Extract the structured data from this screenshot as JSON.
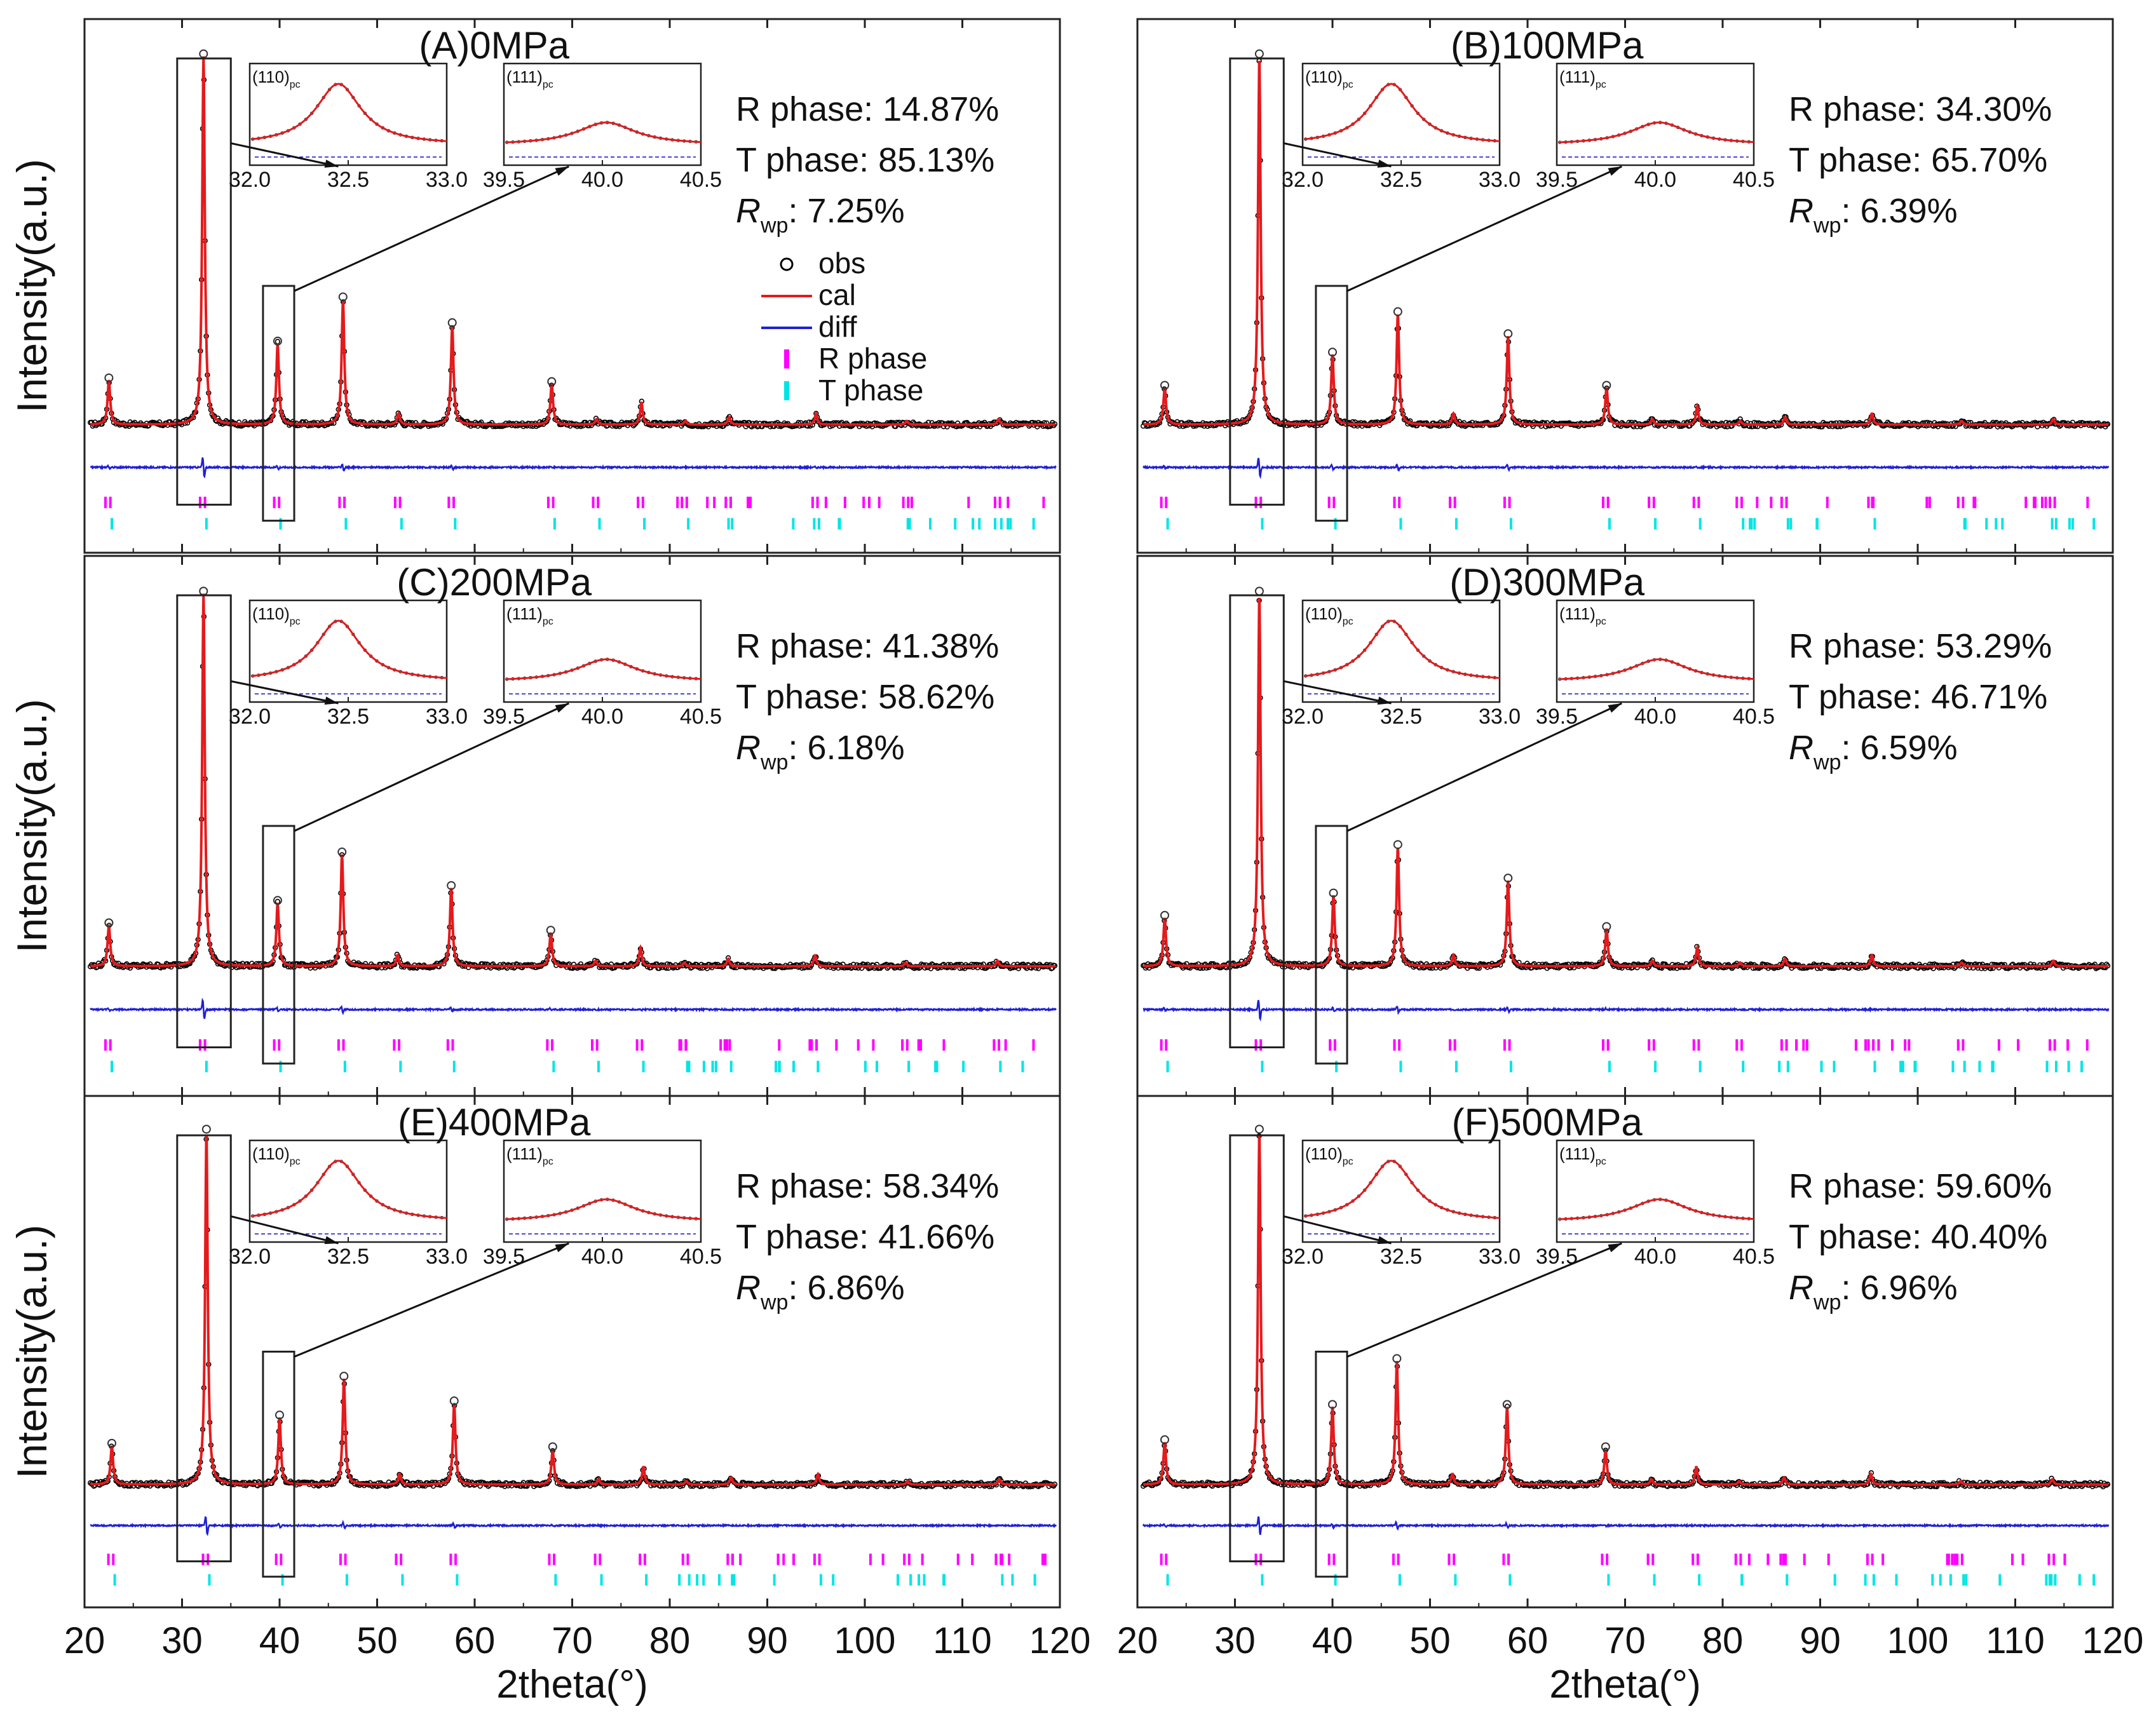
{
  "figure": {
    "ylabel": "Intensity(a.u.)",
    "xlabel": "2theta(°)",
    "xlim": [
      20,
      120
    ],
    "x_ticks": [
      20,
      30,
      40,
      50,
      60,
      70,
      80,
      90,
      100,
      110,
      120
    ],
    "legend": [
      {
        "label": "obs",
        "marker": "circle",
        "color": "#000000"
      },
      {
        "label": "cal",
        "marker": "line",
        "color": "#e41a1c"
      },
      {
        "label": "diff",
        "marker": "line",
        "color": "#1f1fd6"
      },
      {
        "label": "R  phase",
        "marker": "tick",
        "color": "#ff00ff"
      },
      {
        "label": "T  phase",
        "marker": "tick",
        "color": "#00e5e5"
      }
    ],
    "colors": {
      "obs": "#000000",
      "cal": "#e41a1c",
      "diff": "#1f1fd6",
      "r_phase": "#ff00ff",
      "t_phase": "#00e5e5"
    }
  },
  "chart_data": [
    {
      "type": "line",
      "id": "A",
      "title": "(A)0MPa",
      "r_phase": "R phase: 14.87%",
      "t_phase": "T phase: 85.13%",
      "rwp_value": "7.25%",
      "rwp_main": "R",
      "rwp_sub": "wp",
      "rwp_sep": ":",
      "inset_110": {
        "label": "(110)",
        "sub": "pc",
        "ticks": [
          "32.0",
          "32.5",
          "33.0"
        ],
        "peak_center": 32.45
      },
      "inset_111": {
        "label": "(111)",
        "sub": "pc",
        "ticks": [
          "39.5",
          "40.0",
          "40.5"
        ],
        "peak_center": 40.02
      },
      "peaks": [
        {
          "x": 22.5,
          "h": 0.12
        },
        {
          "x": 32.2,
          "h": 1.0
        },
        {
          "x": 39.8,
          "h": 0.22
        },
        {
          "x": 46.5,
          "h": 0.34
        },
        {
          "x": 52.2,
          "h": 0.03
        },
        {
          "x": 57.7,
          "h": 0.27
        },
        {
          "x": 67.9,
          "h": 0.11
        },
        {
          "x": 72.5,
          "h": 0.015
        },
        {
          "x": 77.1,
          "h": 0.06
        },
        {
          "x": 81.6,
          "h": 0.01
        },
        {
          "x": 86.1,
          "h": 0.02
        },
        {
          "x": 95.0,
          "h": 0.03
        },
        {
          "x": 104.3,
          "h": 0.01
        },
        {
          "x": 113.7,
          "h": 0.015
        }
      ]
    },
    {
      "type": "line",
      "id": "B",
      "title": "(B)100MPa",
      "r_phase": "R phase: 34.30%",
      "t_phase": "T phase: 65.70%",
      "rwp_value": "6.39%",
      "rwp_main": "R",
      "rwp_sub": "wp",
      "rwp_sep": ":",
      "inset_110": {
        "label": "(110)",
        "sub": "pc",
        "ticks": [
          "32.0",
          "32.5",
          "33.0"
        ],
        "peak_center": 32.45
      },
      "inset_111": {
        "label": "(111)",
        "sub": "pc",
        "ticks": [
          "39.5",
          "40.0",
          "40.5"
        ],
        "peak_center": 40.02
      },
      "peaks": [
        {
          "x": 22.8,
          "h": 0.1
        },
        {
          "x": 32.5,
          "h": 1.0
        },
        {
          "x": 40.0,
          "h": 0.19
        },
        {
          "x": 46.7,
          "h": 0.3
        },
        {
          "x": 52.4,
          "h": 0.03
        },
        {
          "x": 58.0,
          "h": 0.24
        },
        {
          "x": 68.1,
          "h": 0.1
        },
        {
          "x": 72.8,
          "h": 0.015
        },
        {
          "x": 77.4,
          "h": 0.05
        },
        {
          "x": 81.8,
          "h": 0.01
        },
        {
          "x": 86.4,
          "h": 0.02
        },
        {
          "x": 95.3,
          "h": 0.03
        },
        {
          "x": 104.5,
          "h": 0.01
        },
        {
          "x": 113.9,
          "h": 0.015
        }
      ]
    },
    {
      "type": "line",
      "id": "C",
      "title": "(C)200MPa",
      "r_phase": "R phase: 41.38%",
      "t_phase": "T phase: 58.62%",
      "rwp_value": "6.18%",
      "rwp_main": "R",
      "rwp_sub": "wp",
      "rwp_sep": ":",
      "inset_110": {
        "label": "(110)",
        "sub": "pc",
        "ticks": [
          "32.0",
          "32.5",
          "33.0"
        ],
        "peak_center": 32.45
      },
      "inset_111": {
        "label": "(111)",
        "sub": "pc",
        "ticks": [
          "39.5",
          "40.0",
          "40.5"
        ],
        "peak_center": 40.02
      },
      "peaks": [
        {
          "x": 22.5,
          "h": 0.11
        },
        {
          "x": 32.2,
          "h": 1.0
        },
        {
          "x": 39.8,
          "h": 0.17
        },
        {
          "x": 46.4,
          "h": 0.3
        },
        {
          "x": 52.1,
          "h": 0.03
        },
        {
          "x": 57.6,
          "h": 0.21
        },
        {
          "x": 67.8,
          "h": 0.09
        },
        {
          "x": 72.4,
          "h": 0.015
        },
        {
          "x": 77.0,
          "h": 0.05
        },
        {
          "x": 81.5,
          "h": 0.01
        },
        {
          "x": 86.0,
          "h": 0.02
        },
        {
          "x": 94.9,
          "h": 0.03
        },
        {
          "x": 104.2,
          "h": 0.01
        },
        {
          "x": 113.6,
          "h": 0.015
        }
      ]
    },
    {
      "type": "line",
      "id": "D",
      "title": "(D)300MPa",
      "r_phase": "R phase: 53.29%",
      "t_phase": "T phase: 46.71%",
      "rwp_value": "6.59%",
      "rwp_main": "R",
      "rwp_sub": "wp",
      "rwp_sep": ":",
      "inset_110": {
        "label": "(110)",
        "sub": "pc",
        "ticks": [
          "32.0",
          "32.5",
          "33.0"
        ],
        "peak_center": 32.45
      },
      "inset_111": {
        "label": "(111)",
        "sub": "pc",
        "ticks": [
          "39.5",
          "40.0",
          "40.5"
        ],
        "peak_center": 40.02
      },
      "peaks": [
        {
          "x": 22.8,
          "h": 0.13
        },
        {
          "x": 32.5,
          "h": 1.0
        },
        {
          "x": 40.1,
          "h": 0.19
        },
        {
          "x": 46.7,
          "h": 0.32
        },
        {
          "x": 52.4,
          "h": 0.03
        },
        {
          "x": 58.0,
          "h": 0.23
        },
        {
          "x": 68.1,
          "h": 0.1
        },
        {
          "x": 72.8,
          "h": 0.015
        },
        {
          "x": 77.4,
          "h": 0.05
        },
        {
          "x": 81.8,
          "h": 0.01
        },
        {
          "x": 86.4,
          "h": 0.02
        },
        {
          "x": 95.3,
          "h": 0.03
        },
        {
          "x": 104.5,
          "h": 0.01
        },
        {
          "x": 113.9,
          "h": 0.015
        }
      ]
    },
    {
      "type": "line",
      "id": "E",
      "title": "(E)400MPa",
      "r_phase": "R phase: 58.34%",
      "t_phase": "T phase: 41.66%",
      "rwp_value": "6.86%",
      "rwp_main": "R",
      "rwp_sub": "wp",
      "rwp_sep": ":",
      "inset_110": {
        "label": "(110)",
        "sub": "pc",
        "ticks": [
          "32.0",
          "32.5",
          "33.0"
        ],
        "peak_center": 32.45
      },
      "inset_111": {
        "label": "(111)",
        "sub": "pc",
        "ticks": [
          "39.5",
          "40.0",
          "40.5"
        ],
        "peak_center": 40.02
      },
      "peaks": [
        {
          "x": 22.8,
          "h": 0.11
        },
        {
          "x": 32.5,
          "h": 1.0
        },
        {
          "x": 40.0,
          "h": 0.19
        },
        {
          "x": 46.6,
          "h": 0.3
        },
        {
          "x": 52.3,
          "h": 0.03
        },
        {
          "x": 57.9,
          "h": 0.23
        },
        {
          "x": 68.0,
          "h": 0.1
        },
        {
          "x": 72.7,
          "h": 0.015
        },
        {
          "x": 77.3,
          "h": 0.05
        },
        {
          "x": 81.7,
          "h": 0.01
        },
        {
          "x": 86.3,
          "h": 0.02
        },
        {
          "x": 95.2,
          "h": 0.03
        },
        {
          "x": 104.4,
          "h": 0.01
        },
        {
          "x": 113.8,
          "h": 0.015
        }
      ]
    },
    {
      "type": "line",
      "id": "F",
      "title": "(F)500MPa",
      "r_phase": "R phase: 59.60%",
      "t_phase": "T phase:  40.40%",
      "rwp_value": "6.96%",
      "rwp_main": "R",
      "rwp_sub": "wp",
      "rwp_sep": ":",
      "inset_110": {
        "label": "(110)",
        "sub": "pc",
        "ticks": [
          "32.0",
          "32.5",
          "33.0"
        ],
        "peak_center": 32.45
      },
      "inset_111": {
        "label": "(111)",
        "sub": "pc",
        "ticks": [
          "39.5",
          "40.0",
          "40.5"
        ],
        "peak_center": 40.02
      },
      "peaks": [
        {
          "x": 22.8,
          "h": 0.12
        },
        {
          "x": 32.5,
          "h": 1.0
        },
        {
          "x": 40.0,
          "h": 0.22
        },
        {
          "x": 46.6,
          "h": 0.35
        },
        {
          "x": 52.3,
          "h": 0.03
        },
        {
          "x": 57.9,
          "h": 0.22
        },
        {
          "x": 68.0,
          "h": 0.1
        },
        {
          "x": 72.7,
          "h": 0.015
        },
        {
          "x": 77.3,
          "h": 0.05
        },
        {
          "x": 81.7,
          "h": 0.01
        },
        {
          "x": 86.3,
          "h": 0.02
        },
        {
          "x": 95.2,
          "h": 0.03
        },
        {
          "x": 104.4,
          "h": 0.01
        },
        {
          "x": 113.8,
          "h": 0.015
        }
      ]
    }
  ]
}
